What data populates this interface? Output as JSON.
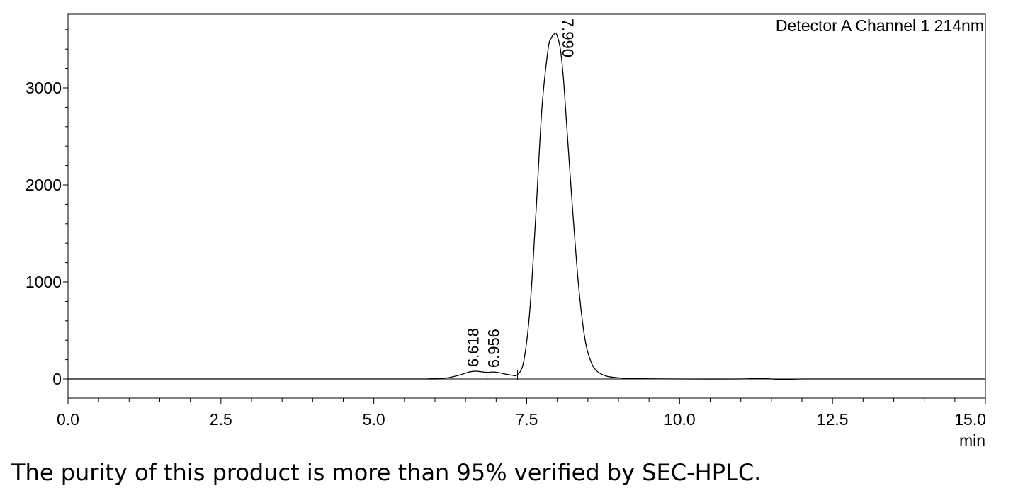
{
  "chart_data": {
    "type": "line",
    "legend": "Detector A Channel 1 214nm",
    "legend_position": "top-right",
    "xlabel": "min",
    "ylabel": "",
    "xlim": [
      0,
      15
    ],
    "ylim": [
      -200,
      3700
    ],
    "x_ticks": [
      "0.0",
      "2.5",
      "5.0",
      "7.5",
      "10.0",
      "12.5",
      "15.0"
    ],
    "y_ticks": [
      "0",
      "1000",
      "2000",
      "3000"
    ],
    "grid": false,
    "series": [
      {
        "x": [
          0,
          5.5,
          5.9,
          6.2,
          6.4,
          6.55,
          6.65,
          6.75,
          6.85,
          6.95,
          7.05,
          7.15,
          7.25,
          7.35,
          7.45,
          7.55,
          7.65,
          7.75,
          7.85,
          7.9,
          7.95,
          7.99,
          8.05,
          8.1,
          8.15,
          8.25,
          8.35,
          8.45,
          8.55,
          8.65,
          8.8,
          9.0,
          9.2,
          9.5,
          10.0,
          11.0,
          11.3,
          11.5,
          11.7,
          12.0,
          13.0,
          15.0
        ],
        "y": [
          0,
          0,
          2,
          12,
          40,
          70,
          80,
          75,
          68,
          72,
          65,
          50,
          40,
          45,
          180,
          700,
          1700,
          2800,
          3400,
          3510,
          3555,
          3550,
          3400,
          3100,
          2650,
          1750,
          950,
          420,
          180,
          80,
          30,
          12,
          5,
          2,
          0,
          0,
          8,
          0,
          -8,
          0,
          0,
          0
        ]
      }
    ],
    "peak_labels": [
      {
        "label": "6.618",
        "x": 6.618,
        "y": 80
      },
      {
        "label": "6.956",
        "x": 6.956,
        "y": 72
      },
      {
        "label": "7.990",
        "x": 7.99,
        "y": 3555
      }
    ],
    "baseline_markers": [
      6.85,
      7.35
    ]
  },
  "caption": "The purity of this product is more than 95% verified by SEC-HPLC.",
  "colors": {
    "trace": "#000000",
    "axis": "#000000",
    "background": "#ffffff"
  }
}
